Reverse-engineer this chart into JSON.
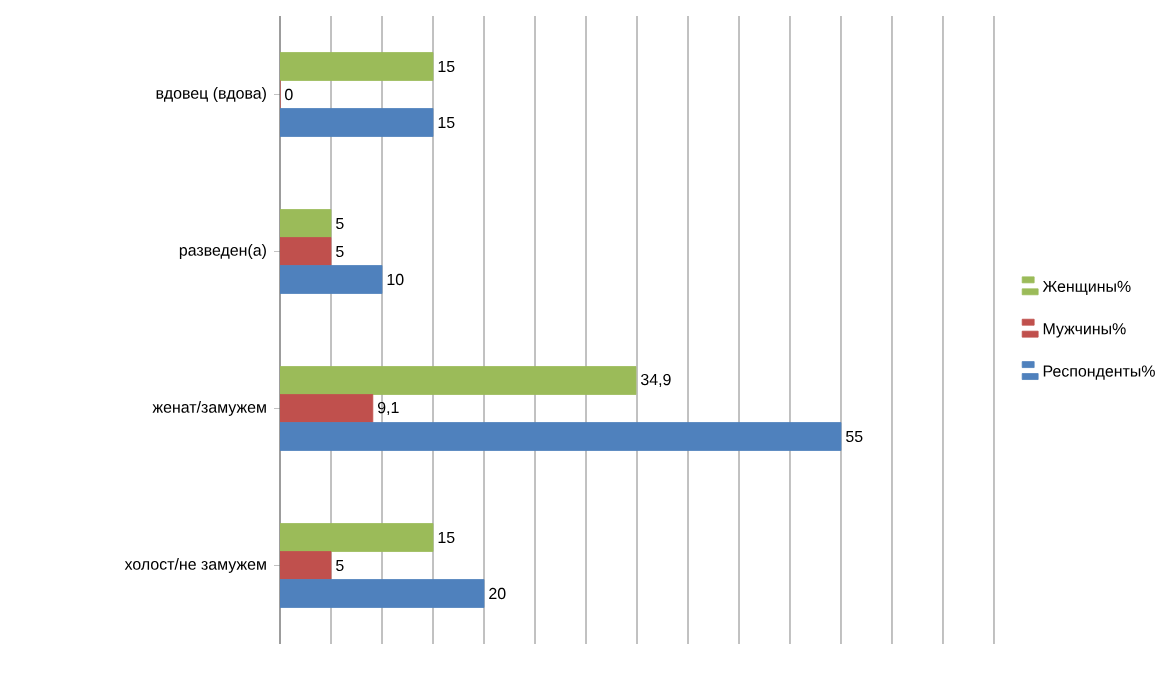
{
  "chart_data": {
    "type": "bar",
    "orientation": "horizontal",
    "categories": [
      "вдовец (вдова)",
      "разведен(а)",
      "женат/замужем",
      "холост/не замужем"
    ],
    "series": [
      {
        "name": "Женщины%",
        "color": "#9bbb59",
        "values": [
          15,
          5,
          34.9,
          15
        ],
        "value_labels": [
          "15",
          "5",
          "34,9",
          "15"
        ]
      },
      {
        "name": "Мужчины%",
        "color": "#c0504d",
        "values": [
          0,
          5,
          9.1,
          5
        ],
        "value_labels": [
          "0",
          "5",
          "9,1",
          "5"
        ]
      },
      {
        "name": "Респонденты%",
        "color": "#4f81bd",
        "values": [
          15,
          10,
          55,
          20
        ],
        "value_labels": [
          "15",
          "10",
          "55",
          "20"
        ]
      }
    ],
    "xlim": [
      0,
      70
    ],
    "tick_labels": "y",
    "grid": "x",
    "legend": "right"
  }
}
